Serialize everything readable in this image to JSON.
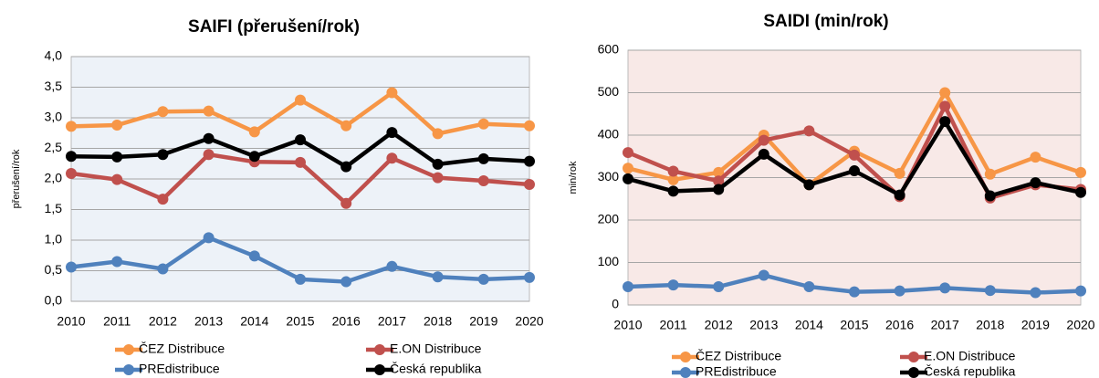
{
  "chart_data": [
    {
      "type": "line",
      "title": "SAIFI (přerušení/rok)",
      "y_label": "přerušení/rok",
      "categories": [
        "2010",
        "2011",
        "2012",
        "2013",
        "2014",
        "2015",
        "2016",
        "2017",
        "2018",
        "2019",
        "2020"
      ],
      "ylim": [
        0,
        4
      ],
      "yticks": [
        {
          "value": 0,
          "label": "0,0"
        },
        {
          "value": 0.5,
          "label": "0,5"
        },
        {
          "value": 1,
          "label": "1,0"
        },
        {
          "value": 1.5,
          "label": "1,5"
        },
        {
          "value": 2,
          "label": "2,0"
        },
        {
          "value": 2.5,
          "label": "2,5"
        },
        {
          "value": 3,
          "label": "3,0"
        },
        {
          "value": 3.5,
          "label": "3,5"
        },
        {
          "value": 4,
          "label": "4,0"
        }
      ],
      "grid": true,
      "background": "#edf2f8",
      "series": [
        {
          "name": "ČEZ Distribuce",
          "color": "#f79646",
          "values": [
            2.86,
            2.88,
            3.1,
            3.11,
            2.77,
            3.29,
            2.87,
            3.41,
            2.74,
            2.9,
            2.87
          ]
        },
        {
          "name": "E.ON Distribuce",
          "color": "#c0504d",
          "values": [
            2.09,
            1.99,
            1.67,
            2.4,
            2.28,
            2.27,
            1.6,
            2.34,
            2.02,
            1.97,
            1.91
          ]
        },
        {
          "name": "PREdistribuce",
          "color": "#4f81bd",
          "values": [
            0.56,
            0.65,
            0.53,
            1.04,
            0.74,
            0.36,
            0.32,
            0.57,
            0.4,
            0.36,
            0.39
          ]
        },
        {
          "name": "Česká republika",
          "color": "#000000",
          "values": [
            2.37,
            2.36,
            2.4,
            2.66,
            2.37,
            2.64,
            2.2,
            2.76,
            2.24,
            2.33,
            2.29
          ]
        }
      ]
    },
    {
      "type": "line",
      "title": "SAIDI (min/rok)",
      "y_label": "min/rok",
      "categories": [
        "2010",
        "2011",
        "2012",
        "2013",
        "2014",
        "2015",
        "2016",
        "2017",
        "2018",
        "2019",
        "2020"
      ],
      "ylim": [
        0,
        600
      ],
      "yticks": [
        0,
        100,
        200,
        300,
        400,
        500,
        600
      ],
      "grid": true,
      "background": "#f8e9e7",
      "series": [
        {
          "name": "ČEZ Distribuce",
          "color": "#f79646",
          "values": [
            322,
            295,
            312,
            400,
            283,
            362,
            310,
            500,
            308,
            348,
            312
          ]
        },
        {
          "name": "E.ON Distribuce",
          "color": "#c0504d",
          "values": [
            359,
            315,
            292,
            388,
            410,
            353,
            255,
            468,
            252,
            283,
            272
          ]
        },
        {
          "name": "PREdistribuce",
          "color": "#4f81bd",
          "values": [
            43,
            47,
            43,
            70,
            43,
            31,
            33,
            40,
            34,
            29,
            33
          ]
        },
        {
          "name": "Česká republika",
          "color": "#000000",
          "values": [
            297,
            268,
            272,
            355,
            283,
            316,
            259,
            432,
            257,
            288,
            265
          ]
        }
      ]
    }
  ]
}
